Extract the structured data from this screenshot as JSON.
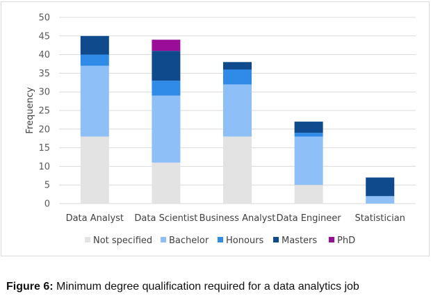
{
  "caption": {
    "label": "Figure 6:",
    "text": " Minimum degree qualification required for a data analytics job"
  },
  "chart_data": {
    "type": "bar",
    "stacked": true,
    "ylabel": "Frequency",
    "xlabel": "",
    "ylim": [
      0,
      50
    ],
    "yticks": [
      0,
      5,
      10,
      15,
      20,
      25,
      30,
      35,
      40,
      45,
      50
    ],
    "grid": true,
    "legend_position": "bottom",
    "categories": [
      "Data Analyst",
      "Data Scientist",
      "Business Analyst",
      "Data Engineer",
      "Statistician"
    ],
    "series": [
      {
        "name": "Not specified",
        "color": "#e3e3e3",
        "values": [
          18,
          11,
          18,
          5,
          0
        ]
      },
      {
        "name": "Bachelor",
        "color": "#8ec0f7",
        "values": [
          19,
          18,
          14,
          13,
          2
        ]
      },
      {
        "name": "Honours",
        "color": "#2f8ae8",
        "values": [
          3,
          4,
          4,
          1,
          0
        ]
      },
      {
        "name": "Masters",
        "color": "#0e4a8c",
        "values": [
          5,
          8,
          2,
          3,
          5
        ]
      },
      {
        "name": "PhD",
        "color": "#990d99",
        "values": [
          0,
          3,
          0,
          0,
          0
        ]
      }
    ]
  }
}
